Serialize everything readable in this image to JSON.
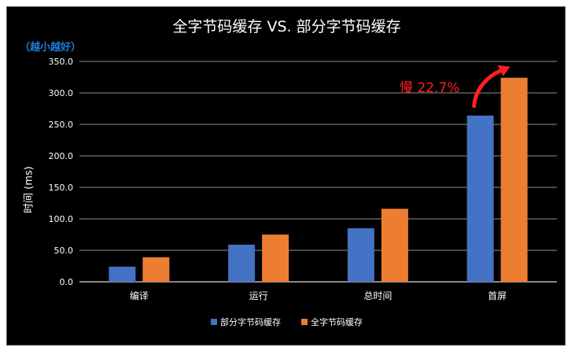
{
  "chart_data": {
    "type": "bar",
    "title": "全字节码缓存 VS. 部分字节码缓存",
    "note": "（越小越好）",
    "ylabel": "时间 (ms)",
    "xlabel": "",
    "categories": [
      "编译",
      "运行",
      "总时间",
      "首屏"
    ],
    "ylim": [
      0,
      350
    ],
    "yticks": [
      "0.0",
      "50.0",
      "100.0",
      "150.0",
      "200.0",
      "250.0",
      "300.0",
      "350.0"
    ],
    "grid": true,
    "legend_position": "bottom",
    "series": [
      {
        "name": "部分字节码缓存",
        "color": "#4472c4",
        "values": [
          24,
          59,
          85,
          264
        ]
      },
      {
        "name": "全字节码缓存",
        "color": "#ed7d31",
        "values": [
          39,
          75,
          116,
          324
        ]
      }
    ],
    "annotation": {
      "text": "慢 22.7%",
      "color": "#ff2020",
      "category": "首屏"
    }
  }
}
